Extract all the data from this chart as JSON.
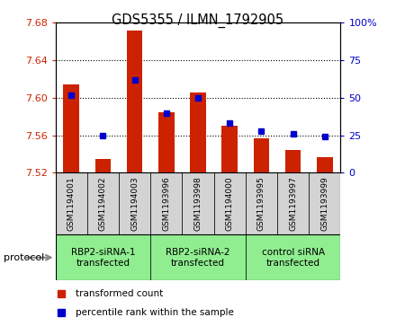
{
  "title": "GDS5355 / ILMN_1792905",
  "samples": [
    "GSM1194001",
    "GSM1194002",
    "GSM1194003",
    "GSM1193996",
    "GSM1193998",
    "GSM1194000",
    "GSM1193995",
    "GSM1193997",
    "GSM1193999"
  ],
  "red_values": [
    7.614,
    7.535,
    7.672,
    7.585,
    7.606,
    7.57,
    7.557,
    7.544,
    7.537
  ],
  "blue_values": [
    52,
    25,
    62,
    40,
    50,
    33,
    28,
    26,
    24
  ],
  "ylim": [
    7.52,
    7.68
  ],
  "y2lim": [
    0,
    100
  ],
  "yticks": [
    7.52,
    7.56,
    7.6,
    7.64,
    7.68
  ],
  "y2ticks": [
    0,
    25,
    50,
    75,
    100
  ],
  "groups": [
    {
      "label": "RBP2-siRNA-1\ntransfected",
      "start": 0,
      "end": 3,
      "color": "#90EE90"
    },
    {
      "label": "RBP2-siRNA-2\ntransfected",
      "start": 3,
      "end": 6,
      "color": "#90EE90"
    },
    {
      "label": "control siRNA\ntransfected",
      "start": 6,
      "end": 9,
      "color": "#90EE90"
    }
  ],
  "bar_color": "#CC2200",
  "dot_color": "#0000CC",
  "bar_width": 0.5,
  "background_color": "#ffffff",
  "sample_box_color": "#d3d3d3",
  "ylabel_color": "#CC2200",
  "y2label_color": "#0000CC",
  "protocol_label": "protocol"
}
